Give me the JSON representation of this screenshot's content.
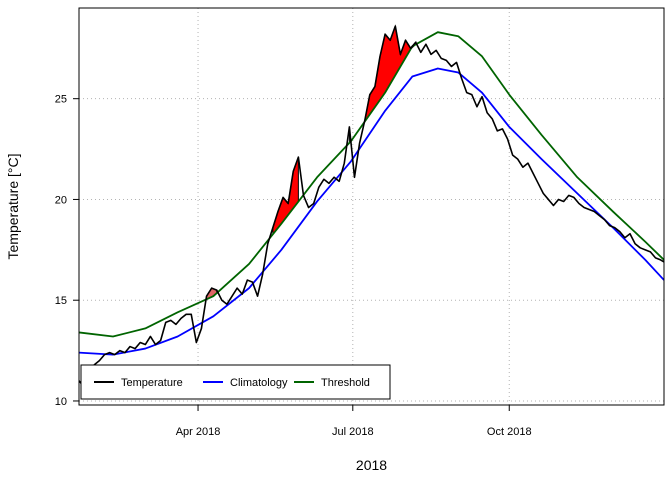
{
  "chart_data": {
    "type": "line",
    "title": "",
    "xlabel": "2018",
    "ylabel": "Temperature [°C]",
    "x_type": "date",
    "xlim": [
      "2018-01-21",
      "2018-12-31"
    ],
    "ylim": [
      9.8,
      29.5
    ],
    "x_ticks": [
      {
        "date": "2018-04-01",
        "label": "Apr 2018"
      },
      {
        "date": "2018-07-01",
        "label": "Jul 2018"
      },
      {
        "date": "2018-10-01",
        "label": "Oct 2018"
      }
    ],
    "y_ticks": [
      {
        "value": 10,
        "label": "10"
      },
      {
        "value": 15,
        "label": "15"
      },
      {
        "value": 20,
        "label": "20"
      },
      {
        "value": 25,
        "label": "25"
      }
    ],
    "grid": true,
    "legend": {
      "position": "bottom-left",
      "items": [
        {
          "label": "Temperature",
          "color": "#000000"
        },
        {
          "label": "Climatology",
          "color": "#0000ff"
        },
        {
          "label": "Threshold",
          "color": "#006400"
        }
      ]
    },
    "event_colors": [
      "#e06666",
      "#ff0000"
    ],
    "series": [
      {
        "name": "Temperature",
        "color": "#000000",
        "x": [
          "2018-01-21",
          "2018-01-24",
          "2018-01-27",
          "2018-01-30",
          "2018-02-02",
          "2018-02-05",
          "2018-02-08",
          "2018-02-11",
          "2018-02-14",
          "2018-02-17",
          "2018-02-20",
          "2018-02-23",
          "2018-02-26",
          "2018-03-01",
          "2018-03-04",
          "2018-03-07",
          "2018-03-10",
          "2018-03-13",
          "2018-03-16",
          "2018-03-19",
          "2018-03-22",
          "2018-03-25",
          "2018-03-28",
          "2018-03-31",
          "2018-04-03",
          "2018-04-06",
          "2018-04-09",
          "2018-04-12",
          "2018-04-15",
          "2018-04-18",
          "2018-04-21",
          "2018-04-24",
          "2018-04-27",
          "2018-04-30",
          "2018-05-03",
          "2018-05-06",
          "2018-05-09",
          "2018-05-12",
          "2018-05-15",
          "2018-05-18",
          "2018-05-21",
          "2018-05-24",
          "2018-05-27",
          "2018-05-30",
          "2018-06-02",
          "2018-06-05",
          "2018-06-08",
          "2018-06-11",
          "2018-06-14",
          "2018-06-17",
          "2018-06-20",
          "2018-06-23",
          "2018-06-26",
          "2018-06-29",
          "2018-07-02",
          "2018-07-05",
          "2018-07-08",
          "2018-07-11",
          "2018-07-14",
          "2018-07-17",
          "2018-07-20",
          "2018-07-23",
          "2018-07-26",
          "2018-07-29",
          "2018-08-01",
          "2018-08-04",
          "2018-08-07",
          "2018-08-10",
          "2018-08-13",
          "2018-08-16",
          "2018-08-19",
          "2018-08-22",
          "2018-08-25",
          "2018-08-28",
          "2018-08-31",
          "2018-09-03",
          "2018-09-06",
          "2018-09-09",
          "2018-09-12",
          "2018-09-15",
          "2018-09-18",
          "2018-09-21",
          "2018-09-24",
          "2018-09-27",
          "2018-09-30",
          "2018-10-03",
          "2018-10-06",
          "2018-10-09",
          "2018-10-12",
          "2018-10-15",
          "2018-10-18",
          "2018-10-21",
          "2018-10-24",
          "2018-10-27",
          "2018-10-30",
          "2018-11-02",
          "2018-11-05",
          "2018-11-08",
          "2018-11-11",
          "2018-11-14",
          "2018-11-17",
          "2018-11-20",
          "2018-11-23",
          "2018-11-26",
          "2018-11-29",
          "2018-12-02",
          "2018-12-05",
          "2018-12-08",
          "2018-12-11",
          "2018-12-14",
          "2018-12-17",
          "2018-12-20",
          "2018-12-23",
          "2018-12-26",
          "2018-12-29",
          "2018-12-31"
        ],
        "values": [
          11.0,
          10.7,
          11.3,
          11.8,
          12.0,
          12.3,
          12.4,
          12.3,
          12.5,
          12.4,
          12.7,
          12.6,
          12.9,
          12.8,
          13.2,
          12.8,
          13.0,
          13.9,
          14.0,
          13.8,
          14.1,
          14.3,
          14.3,
          12.9,
          13.6,
          15.2,
          15.6,
          15.5,
          15.0,
          14.8,
          15.2,
          15.6,
          15.3,
          16.0,
          15.9,
          15.2,
          16.3,
          17.8,
          18.6,
          19.4,
          20.1,
          19.8,
          21.4,
          22.1,
          20.2,
          19.6,
          19.8,
          20.6,
          21.0,
          20.8,
          21.1,
          20.9,
          21.8,
          23.6,
          21.1,
          22.8,
          23.9,
          25.2,
          25.6,
          27.1,
          28.2,
          27.9,
          28.6,
          27.2,
          27.9,
          27.5,
          27.8,
          27.3,
          27.7,
          27.2,
          27.4,
          27.0,
          26.9,
          26.6,
          26.8,
          26.0,
          25.3,
          25.2,
          24.6,
          25.1,
          24.3,
          24.0,
          23.4,
          23.5,
          23.0,
          22.2,
          22.0,
          21.6,
          21.8,
          21.3,
          20.8,
          20.3,
          20.0,
          19.7,
          20.0,
          19.9,
          20.2,
          20.1,
          19.8,
          19.6,
          19.5,
          19.4,
          19.2,
          19.0,
          18.7,
          18.6,
          18.4,
          18.1,
          18.3,
          17.8,
          17.6,
          17.5,
          17.4,
          17.1,
          17.0,
          16.9
        ]
      },
      {
        "name": "Climatology",
        "color": "#0000ff",
        "x": [
          "2018-01-21",
          "2018-02-10",
          "2018-03-01",
          "2018-03-20",
          "2018-04-10",
          "2018-05-01",
          "2018-05-20",
          "2018-06-10",
          "2018-06-30",
          "2018-07-20",
          "2018-08-05",
          "2018-08-20",
          "2018-09-01",
          "2018-09-15",
          "2018-10-01",
          "2018-10-20",
          "2018-11-10",
          "2018-12-01",
          "2018-12-20",
          "2018-12-31"
        ],
        "values": [
          12.4,
          12.3,
          12.6,
          13.2,
          14.2,
          15.6,
          17.5,
          19.9,
          21.9,
          24.4,
          26.1,
          26.5,
          26.3,
          25.3,
          23.6,
          22.0,
          20.3,
          18.6,
          17.0,
          16.0
        ]
      },
      {
        "name": "Threshold",
        "color": "#006400",
        "x": [
          "2018-01-21",
          "2018-02-10",
          "2018-03-01",
          "2018-03-20",
          "2018-04-10",
          "2018-05-01",
          "2018-05-20",
          "2018-06-10",
          "2018-06-30",
          "2018-07-20",
          "2018-08-05",
          "2018-08-20",
          "2018-09-01",
          "2018-09-15",
          "2018-10-01",
          "2018-10-20",
          "2018-11-10",
          "2018-12-01",
          "2018-12-20",
          "2018-12-31"
        ],
        "values": [
          13.4,
          13.2,
          13.6,
          14.4,
          15.2,
          16.8,
          18.8,
          21.1,
          22.9,
          25.3,
          27.6,
          28.3,
          28.1,
          27.1,
          25.2,
          23.2,
          21.1,
          19.4,
          17.9,
          17.0
        ]
      }
    ]
  }
}
